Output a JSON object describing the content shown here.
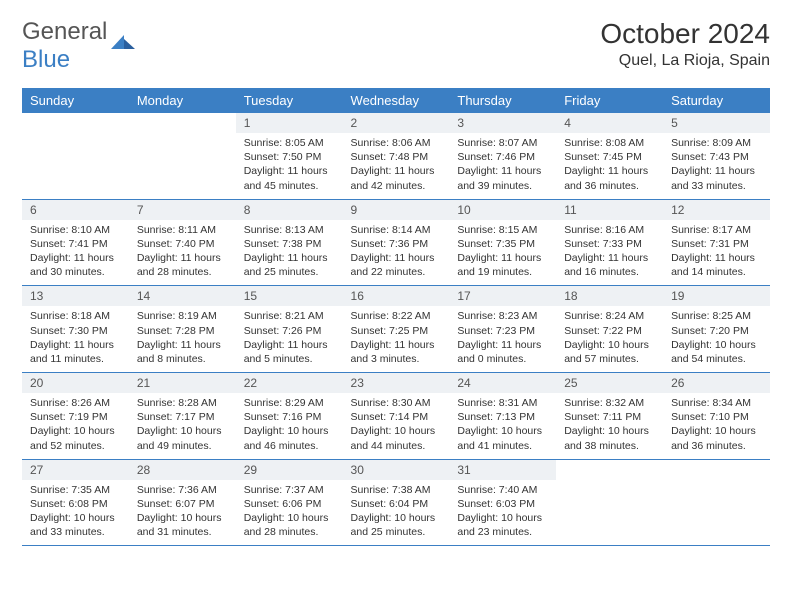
{
  "brand": {
    "part1": "General",
    "part2": "Blue"
  },
  "title": "October 2024",
  "location": "Quel, La Rioja, Spain",
  "colors": {
    "header_bg": "#3b7fc4",
    "daynum_bg": "#eef1f4",
    "divider": "#3b7fc4",
    "text": "#333"
  },
  "weekdays": [
    "Sunday",
    "Monday",
    "Tuesday",
    "Wednesday",
    "Thursday",
    "Friday",
    "Saturday"
  ],
  "weeks": [
    [
      null,
      null,
      {
        "n": "1",
        "sr": "8:05 AM",
        "ss": "7:50 PM",
        "dl": "11 hours and 45 minutes."
      },
      {
        "n": "2",
        "sr": "8:06 AM",
        "ss": "7:48 PM",
        "dl": "11 hours and 42 minutes."
      },
      {
        "n": "3",
        "sr": "8:07 AM",
        "ss": "7:46 PM",
        "dl": "11 hours and 39 minutes."
      },
      {
        "n": "4",
        "sr": "8:08 AM",
        "ss": "7:45 PM",
        "dl": "11 hours and 36 minutes."
      },
      {
        "n": "5",
        "sr": "8:09 AM",
        "ss": "7:43 PM",
        "dl": "11 hours and 33 minutes."
      }
    ],
    [
      {
        "n": "6",
        "sr": "8:10 AM",
        "ss": "7:41 PM",
        "dl": "11 hours and 30 minutes."
      },
      {
        "n": "7",
        "sr": "8:11 AM",
        "ss": "7:40 PM",
        "dl": "11 hours and 28 minutes."
      },
      {
        "n": "8",
        "sr": "8:13 AM",
        "ss": "7:38 PM",
        "dl": "11 hours and 25 minutes."
      },
      {
        "n": "9",
        "sr": "8:14 AM",
        "ss": "7:36 PM",
        "dl": "11 hours and 22 minutes."
      },
      {
        "n": "10",
        "sr": "8:15 AM",
        "ss": "7:35 PM",
        "dl": "11 hours and 19 minutes."
      },
      {
        "n": "11",
        "sr": "8:16 AM",
        "ss": "7:33 PM",
        "dl": "11 hours and 16 minutes."
      },
      {
        "n": "12",
        "sr": "8:17 AM",
        "ss": "7:31 PM",
        "dl": "11 hours and 14 minutes."
      }
    ],
    [
      {
        "n": "13",
        "sr": "8:18 AM",
        "ss": "7:30 PM",
        "dl": "11 hours and 11 minutes."
      },
      {
        "n": "14",
        "sr": "8:19 AM",
        "ss": "7:28 PM",
        "dl": "11 hours and 8 minutes."
      },
      {
        "n": "15",
        "sr": "8:21 AM",
        "ss": "7:26 PM",
        "dl": "11 hours and 5 minutes."
      },
      {
        "n": "16",
        "sr": "8:22 AM",
        "ss": "7:25 PM",
        "dl": "11 hours and 3 minutes."
      },
      {
        "n": "17",
        "sr": "8:23 AM",
        "ss": "7:23 PM",
        "dl": "11 hours and 0 minutes."
      },
      {
        "n": "18",
        "sr": "8:24 AM",
        "ss": "7:22 PM",
        "dl": "10 hours and 57 minutes."
      },
      {
        "n": "19",
        "sr": "8:25 AM",
        "ss": "7:20 PM",
        "dl": "10 hours and 54 minutes."
      }
    ],
    [
      {
        "n": "20",
        "sr": "8:26 AM",
        "ss": "7:19 PM",
        "dl": "10 hours and 52 minutes."
      },
      {
        "n": "21",
        "sr": "8:28 AM",
        "ss": "7:17 PM",
        "dl": "10 hours and 49 minutes."
      },
      {
        "n": "22",
        "sr": "8:29 AM",
        "ss": "7:16 PM",
        "dl": "10 hours and 46 minutes."
      },
      {
        "n": "23",
        "sr": "8:30 AM",
        "ss": "7:14 PM",
        "dl": "10 hours and 44 minutes."
      },
      {
        "n": "24",
        "sr": "8:31 AM",
        "ss": "7:13 PM",
        "dl": "10 hours and 41 minutes."
      },
      {
        "n": "25",
        "sr": "8:32 AM",
        "ss": "7:11 PM",
        "dl": "10 hours and 38 minutes."
      },
      {
        "n": "26",
        "sr": "8:34 AM",
        "ss": "7:10 PM",
        "dl": "10 hours and 36 minutes."
      }
    ],
    [
      {
        "n": "27",
        "sr": "7:35 AM",
        "ss": "6:08 PM",
        "dl": "10 hours and 33 minutes."
      },
      {
        "n": "28",
        "sr": "7:36 AM",
        "ss": "6:07 PM",
        "dl": "10 hours and 31 minutes."
      },
      {
        "n": "29",
        "sr": "7:37 AM",
        "ss": "6:06 PM",
        "dl": "10 hours and 28 minutes."
      },
      {
        "n": "30",
        "sr": "7:38 AM",
        "ss": "6:04 PM",
        "dl": "10 hours and 25 minutes."
      },
      {
        "n": "31",
        "sr": "7:40 AM",
        "ss": "6:03 PM",
        "dl": "10 hours and 23 minutes."
      },
      null,
      null
    ]
  ],
  "labels": {
    "sunrise": "Sunrise:",
    "sunset": "Sunset:",
    "daylight": "Daylight:"
  }
}
